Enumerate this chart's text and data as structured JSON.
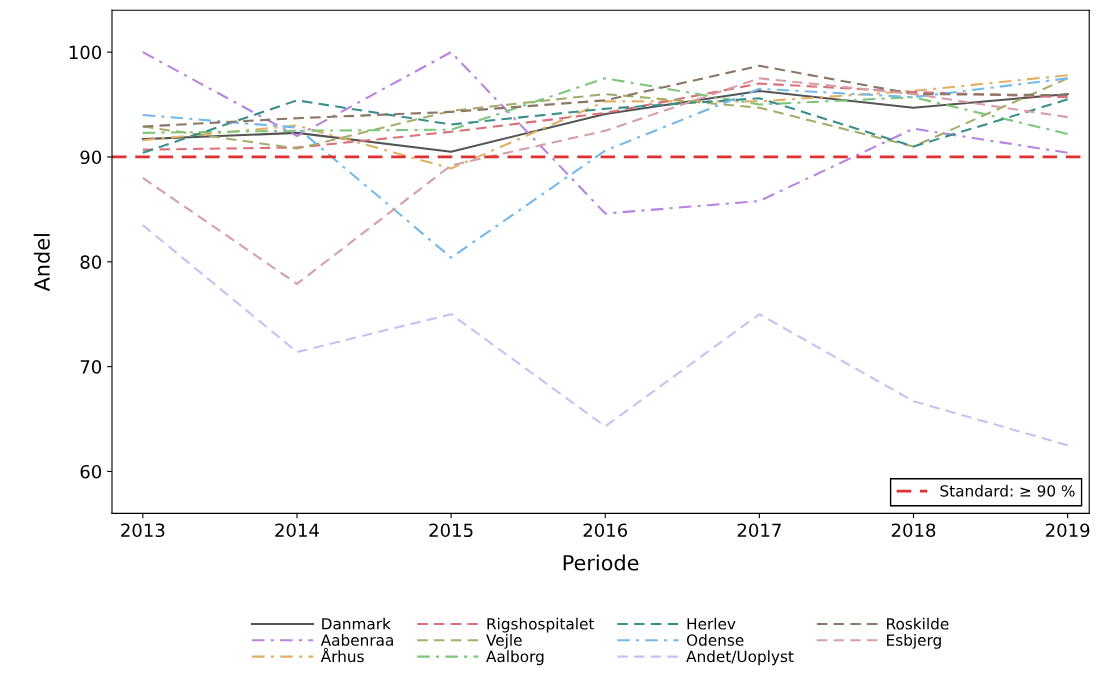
{
  "chart_data": {
    "type": "line",
    "xlabel": "Periode",
    "ylabel": "Andel",
    "categories": [
      "2013",
      "2014",
      "2015",
      "2016",
      "2017",
      "2018",
      "2019"
    ],
    "ylim": [
      56,
      104
    ],
    "yticks": [
      60,
      70,
      80,
      90,
      100
    ],
    "grid": false,
    "legend": "bottom",
    "series": [
      {
        "name": "Danmark",
        "color": "#555555",
        "line_style": "solid",
        "values": [
          91.7,
          92.3,
          90.5,
          94.1,
          96.3,
          94.7,
          96.0
        ]
      },
      {
        "name": "Aabenraa",
        "color": "#b784e0",
        "line_style": "dashdot",
        "values": [
          100.0,
          92.0,
          100.0,
          84.6,
          85.8,
          92.7,
          90.4
        ]
      },
      {
        "name": "Århus",
        "color": "#e2b065",
        "line_style": "dashdot",
        "values": [
          91.6,
          93.0,
          88.9,
          95.3,
          95.3,
          96.3,
          97.8
        ]
      },
      {
        "name": "Rigshospitalet",
        "color": "#d9707a",
        "line_style": "dashed",
        "values": [
          90.7,
          90.9,
          92.4,
          94.2,
          97.0,
          96.2,
          95.7
        ]
      },
      {
        "name": "Vejle",
        "color": "#a4ad6a",
        "line_style": "dashed",
        "values": [
          92.9,
          90.8,
          94.4,
          96.0,
          94.7,
          91.0,
          97.5
        ]
      },
      {
        "name": "Aalborg",
        "color": "#7fc57a",
        "line_style": "dashdot",
        "values": [
          92.3,
          92.5,
          92.6,
          97.5,
          95.0,
          95.7,
          92.2
        ]
      },
      {
        "name": "Herlev",
        "color": "#3a8f8a",
        "line_style": "dashed",
        "values": [
          90.4,
          95.4,
          93.1,
          94.6,
          95.6,
          91.0,
          95.5
        ]
      },
      {
        "name": "Odense",
        "color": "#73b9ec",
        "line_style": "dashdot",
        "values": [
          94.0,
          92.8,
          80.4,
          90.6,
          96.5,
          95.7,
          97.5
        ]
      },
      {
        "name": "Andet/Uoplyst",
        "color": "#c8c0f0",
        "line_style": "dashed",
        "values": [
          83.5,
          71.4,
          75.0,
          64.3,
          75.0,
          66.7,
          62.5
        ]
      },
      {
        "name": "Roskilde",
        "color": "#8b7765",
        "line_style": "dashed",
        "values": [
          92.9,
          93.7,
          94.3,
          95.4,
          98.7,
          96.0,
          95.9
        ]
      },
      {
        "name": "Esbjerg",
        "color": "#d4a0a6",
        "line_style": "dashed",
        "values": [
          88.0,
          77.9,
          89.2,
          92.5,
          97.5,
          96.0,
          93.8
        ]
      }
    ],
    "ref_lines": [
      {
        "axis": "y",
        "value": 90,
        "label": "Standard: ≥ 90 %",
        "color": "#e03030",
        "line_style": "dashed"
      }
    ]
  }
}
